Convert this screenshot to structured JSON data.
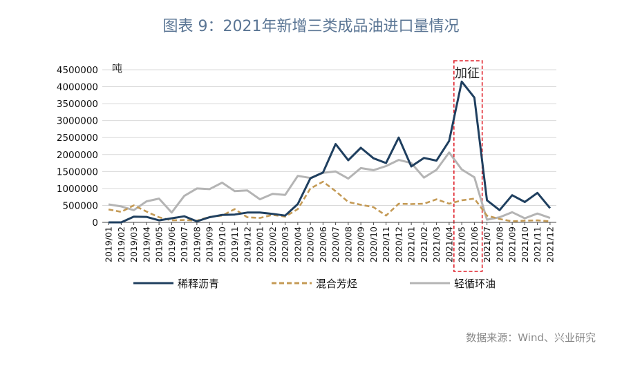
{
  "page": {
    "title": "图表 9：2021年新增三类成品油进口量情况",
    "source": "数据来源：Wind、兴业研究"
  },
  "chart_data": {
    "type": "line",
    "unit_label": "吨",
    "ylim": [
      0,
      4500000
    ],
    "yticks": [
      "4500000",
      "4000000",
      "3500000",
      "3000000",
      "2500000",
      "2000000",
      "1500000",
      "1000000",
      "500000",
      "0"
    ],
    "grid": true,
    "legend_position": "bottom",
    "annotation": "加征",
    "highlight_categories": [
      "2021/05",
      "2021/06"
    ],
    "categories": [
      "2019/01",
      "2019/02",
      "2019/03",
      "2019/04",
      "2019/05",
      "2019/06",
      "2019/07",
      "2019/08",
      "2019/09",
      "2019/10",
      "2019/11",
      "2019/12",
      "2020/01",
      "2020/02",
      "2020/03",
      "2020/04",
      "2020/05",
      "2020/06",
      "2020/07",
      "2020/08",
      "2020/09",
      "2020/10",
      "2020/11",
      "2020/12",
      "2021/01",
      "2021/02",
      "2021/03",
      "2021/04",
      "2021/05",
      "2021/06",
      "2021/07",
      "2021/08",
      "2021/09",
      "2021/10",
      "2021/11",
      "2021/12"
    ],
    "series": [
      {
        "name": "稀释沥青",
        "color": "#1f3f5f",
        "dash": "solid",
        "values": [
          0,
          0,
          170000,
          160000,
          60000,
          120000,
          180000,
          30000,
          150000,
          220000,
          230000,
          290000,
          290000,
          250000,
          200000,
          540000,
          1300000,
          1470000,
          2310000,
          1830000,
          2200000,
          1890000,
          1750000,
          2500000,
          1650000,
          1900000,
          1820000,
          2400000,
          4150000,
          3680000,
          650000,
          360000,
          800000,
          600000,
          870000,
          420000
        ]
      },
      {
        "name": "混合芳烃",
        "color": "#c49a55",
        "dash": "dashed",
        "values": [
          380000,
          310000,
          500000,
          320000,
          150000,
          60000,
          70000,
          50000,
          160000,
          200000,
          390000,
          150000,
          130000,
          220000,
          170000,
          390000,
          1000000,
          1200000,
          920000,
          600000,
          520000,
          450000,
          200000,
          550000,
          540000,
          550000,
          680000,
          550000,
          650000,
          700000,
          200000,
          100000,
          30000,
          50000,
          60000,
          30000
        ]
      },
      {
        "name": "轻循环油",
        "color": "#b4b4b4",
        "dash": "solid",
        "values": [
          530000,
          470000,
          360000,
          620000,
          700000,
          290000,
          780000,
          1000000,
          980000,
          1170000,
          920000,
          940000,
          680000,
          840000,
          810000,
          1370000,
          1310000,
          1460000,
          1500000,
          1290000,
          1600000,
          1540000,
          1660000,
          1840000,
          1750000,
          1320000,
          1550000,
          2060000,
          1560000,
          1330000,
          80000,
          150000,
          300000,
          120000,
          260000,
          130000
        ]
      }
    ]
  }
}
